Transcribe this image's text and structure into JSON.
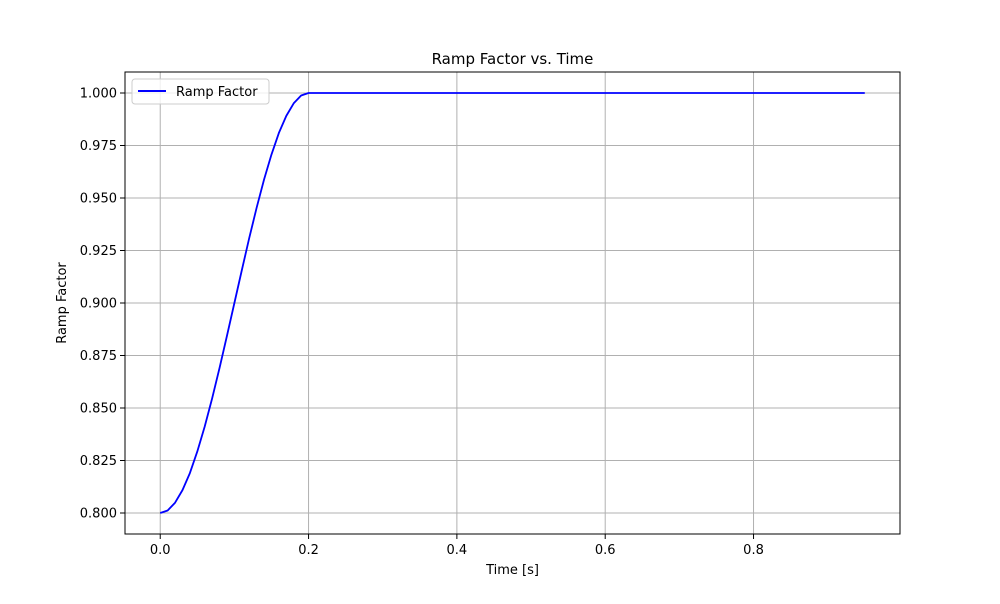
{
  "chart_data": {
    "type": "line",
    "title": "Ramp Factor vs. Time",
    "xlabel": "Time [s]",
    "ylabel": "Ramp Factor",
    "xlim": [
      -0.0475,
      0.9975
    ],
    "ylim": [
      0.79,
      1.01
    ],
    "xticks": [
      0.0,
      0.2,
      0.4,
      0.6,
      0.8
    ],
    "xtick_labels": [
      "0.0",
      "0.2",
      "0.4",
      "0.6",
      "0.8"
    ],
    "yticks": [
      0.8,
      0.825,
      0.85,
      0.875,
      0.9,
      0.925,
      0.95,
      0.975,
      1.0
    ],
    "ytick_labels": [
      "0.800",
      "0.825",
      "0.850",
      "0.875",
      "0.900",
      "0.925",
      "0.950",
      "0.975",
      "1.000"
    ],
    "grid": true,
    "legend_position": "upper left",
    "series": [
      {
        "name": "Ramp Factor",
        "color": "#0000ff",
        "x": [
          0.0,
          0.01,
          0.02,
          0.03,
          0.04,
          0.05,
          0.06,
          0.07,
          0.08,
          0.09,
          0.1,
          0.11,
          0.12,
          0.13,
          0.14,
          0.15,
          0.16,
          0.17,
          0.18,
          0.19,
          0.2,
          0.25,
          0.3,
          0.4,
          0.5,
          0.6,
          0.7,
          0.8,
          0.9,
          0.95
        ],
        "y": [
          0.8,
          0.8012,
          0.8049,
          0.8109,
          0.819,
          0.8293,
          0.8412,
          0.8546,
          0.8691,
          0.8844,
          0.9,
          0.9156,
          0.9309,
          0.9454,
          0.9588,
          0.9707,
          0.981,
          0.9891,
          0.9951,
          0.9988,
          1.0,
          1.0,
          1.0,
          1.0,
          1.0,
          1.0,
          1.0,
          1.0,
          1.0,
          1.0
        ]
      }
    ]
  }
}
